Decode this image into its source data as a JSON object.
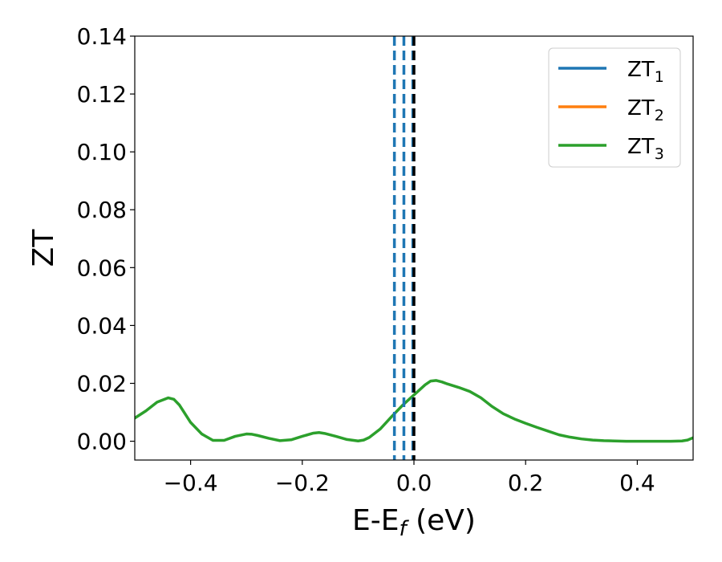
{
  "chart_data": {
    "type": "line",
    "title": "",
    "xlabel": "E-E",
    "xlabel_sub": "f",
    "xlabel_unit": " (eV)",
    "ylabel": "ZT",
    "xlim": [
      -0.5,
      0.5
    ],
    "ylim": [
      -0.0065,
      0.14
    ],
    "xticks": [
      -0.4,
      -0.2,
      0.0,
      0.2,
      0.4
    ],
    "xtick_labels": [
      "−0.4",
      "−0.2",
      "0.0",
      "0.2",
      "0.4"
    ],
    "yticks": [
      0.0,
      0.02,
      0.04,
      0.06,
      0.08,
      0.1,
      0.12,
      0.14
    ],
    "ytick_labels": [
      "0.00",
      "0.02",
      "0.04",
      "0.06",
      "0.08",
      "0.10",
      "0.12",
      "0.14"
    ],
    "grid": false,
    "legend": "top-right",
    "series": [
      {
        "name": "ZT",
        "sub": "1",
        "color": "#1f77b4",
        "x": [],
        "y": []
      },
      {
        "name": "ZT",
        "sub": "2",
        "color": "#ff7f0e",
        "x": [],
        "y": []
      },
      {
        "name": "ZT",
        "sub": "3",
        "color": "#2ca02c",
        "x": [
          -0.5,
          -0.48,
          -0.46,
          -0.44,
          -0.43,
          -0.42,
          -0.4,
          -0.38,
          -0.36,
          -0.34,
          -0.32,
          -0.3,
          -0.29,
          -0.28,
          -0.26,
          -0.24,
          -0.22,
          -0.2,
          -0.18,
          -0.17,
          -0.16,
          -0.14,
          -0.12,
          -0.1,
          -0.09,
          -0.08,
          -0.06,
          -0.04,
          -0.02,
          0.0,
          0.02,
          0.03,
          0.04,
          0.05,
          0.06,
          0.08,
          0.1,
          0.12,
          0.14,
          0.16,
          0.18,
          0.2,
          0.22,
          0.24,
          0.26,
          0.28,
          0.3,
          0.32,
          0.34,
          0.36,
          0.38,
          0.4,
          0.42,
          0.44,
          0.46,
          0.48,
          0.49,
          0.5
        ],
        "y": [
          0.008,
          0.0105,
          0.0135,
          0.015,
          0.0145,
          0.0125,
          0.0065,
          0.0025,
          0.0003,
          0.0003,
          0.0017,
          0.0025,
          0.0024,
          0.002,
          0.001,
          0.0002,
          0.0005,
          0.0017,
          0.0028,
          0.003,
          0.0027,
          0.0017,
          0.0006,
          0.0001,
          0.0004,
          0.0013,
          0.0043,
          0.0085,
          0.0125,
          0.016,
          0.0195,
          0.0208,
          0.021,
          0.0205,
          0.0198,
          0.0186,
          0.0172,
          0.015,
          0.012,
          0.0095,
          0.0077,
          0.0062,
          0.0048,
          0.0035,
          0.0022,
          0.0014,
          0.0008,
          0.0004,
          0.0002,
          0.0001,
          0.0,
          0.0,
          0.0,
          0.0,
          0.0,
          0.0001,
          0.0004,
          0.0012
        ]
      }
    ],
    "vlines": [
      {
        "x": -0.035,
        "style": "dashed",
        "color": "#1f77b4"
      },
      {
        "x": -0.018,
        "style": "dashed",
        "color": "#1f77b4"
      },
      {
        "x": -0.002,
        "style": "dashed",
        "color": "#1f77b4"
      },
      {
        "x": 0.0,
        "style": "dashed",
        "color": "#000000"
      }
    ]
  }
}
